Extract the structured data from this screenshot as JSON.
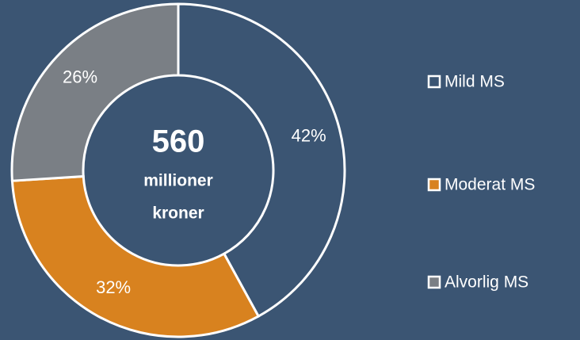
{
  "chart_data": {
    "type": "donut",
    "categories": [
      "Mild MS",
      "Moderat MS",
      "Alvorlig MS"
    ],
    "values": [
      42,
      32,
      26
    ],
    "value_labels": [
      "42%",
      "32%",
      "26%"
    ],
    "colors": [
      "#3b5573",
      "#d8821f",
      "#7a7f85"
    ],
    "center_value": 560,
    "center_text": [
      "millioner",
      "kroner"
    ],
    "legend": "right"
  }
}
